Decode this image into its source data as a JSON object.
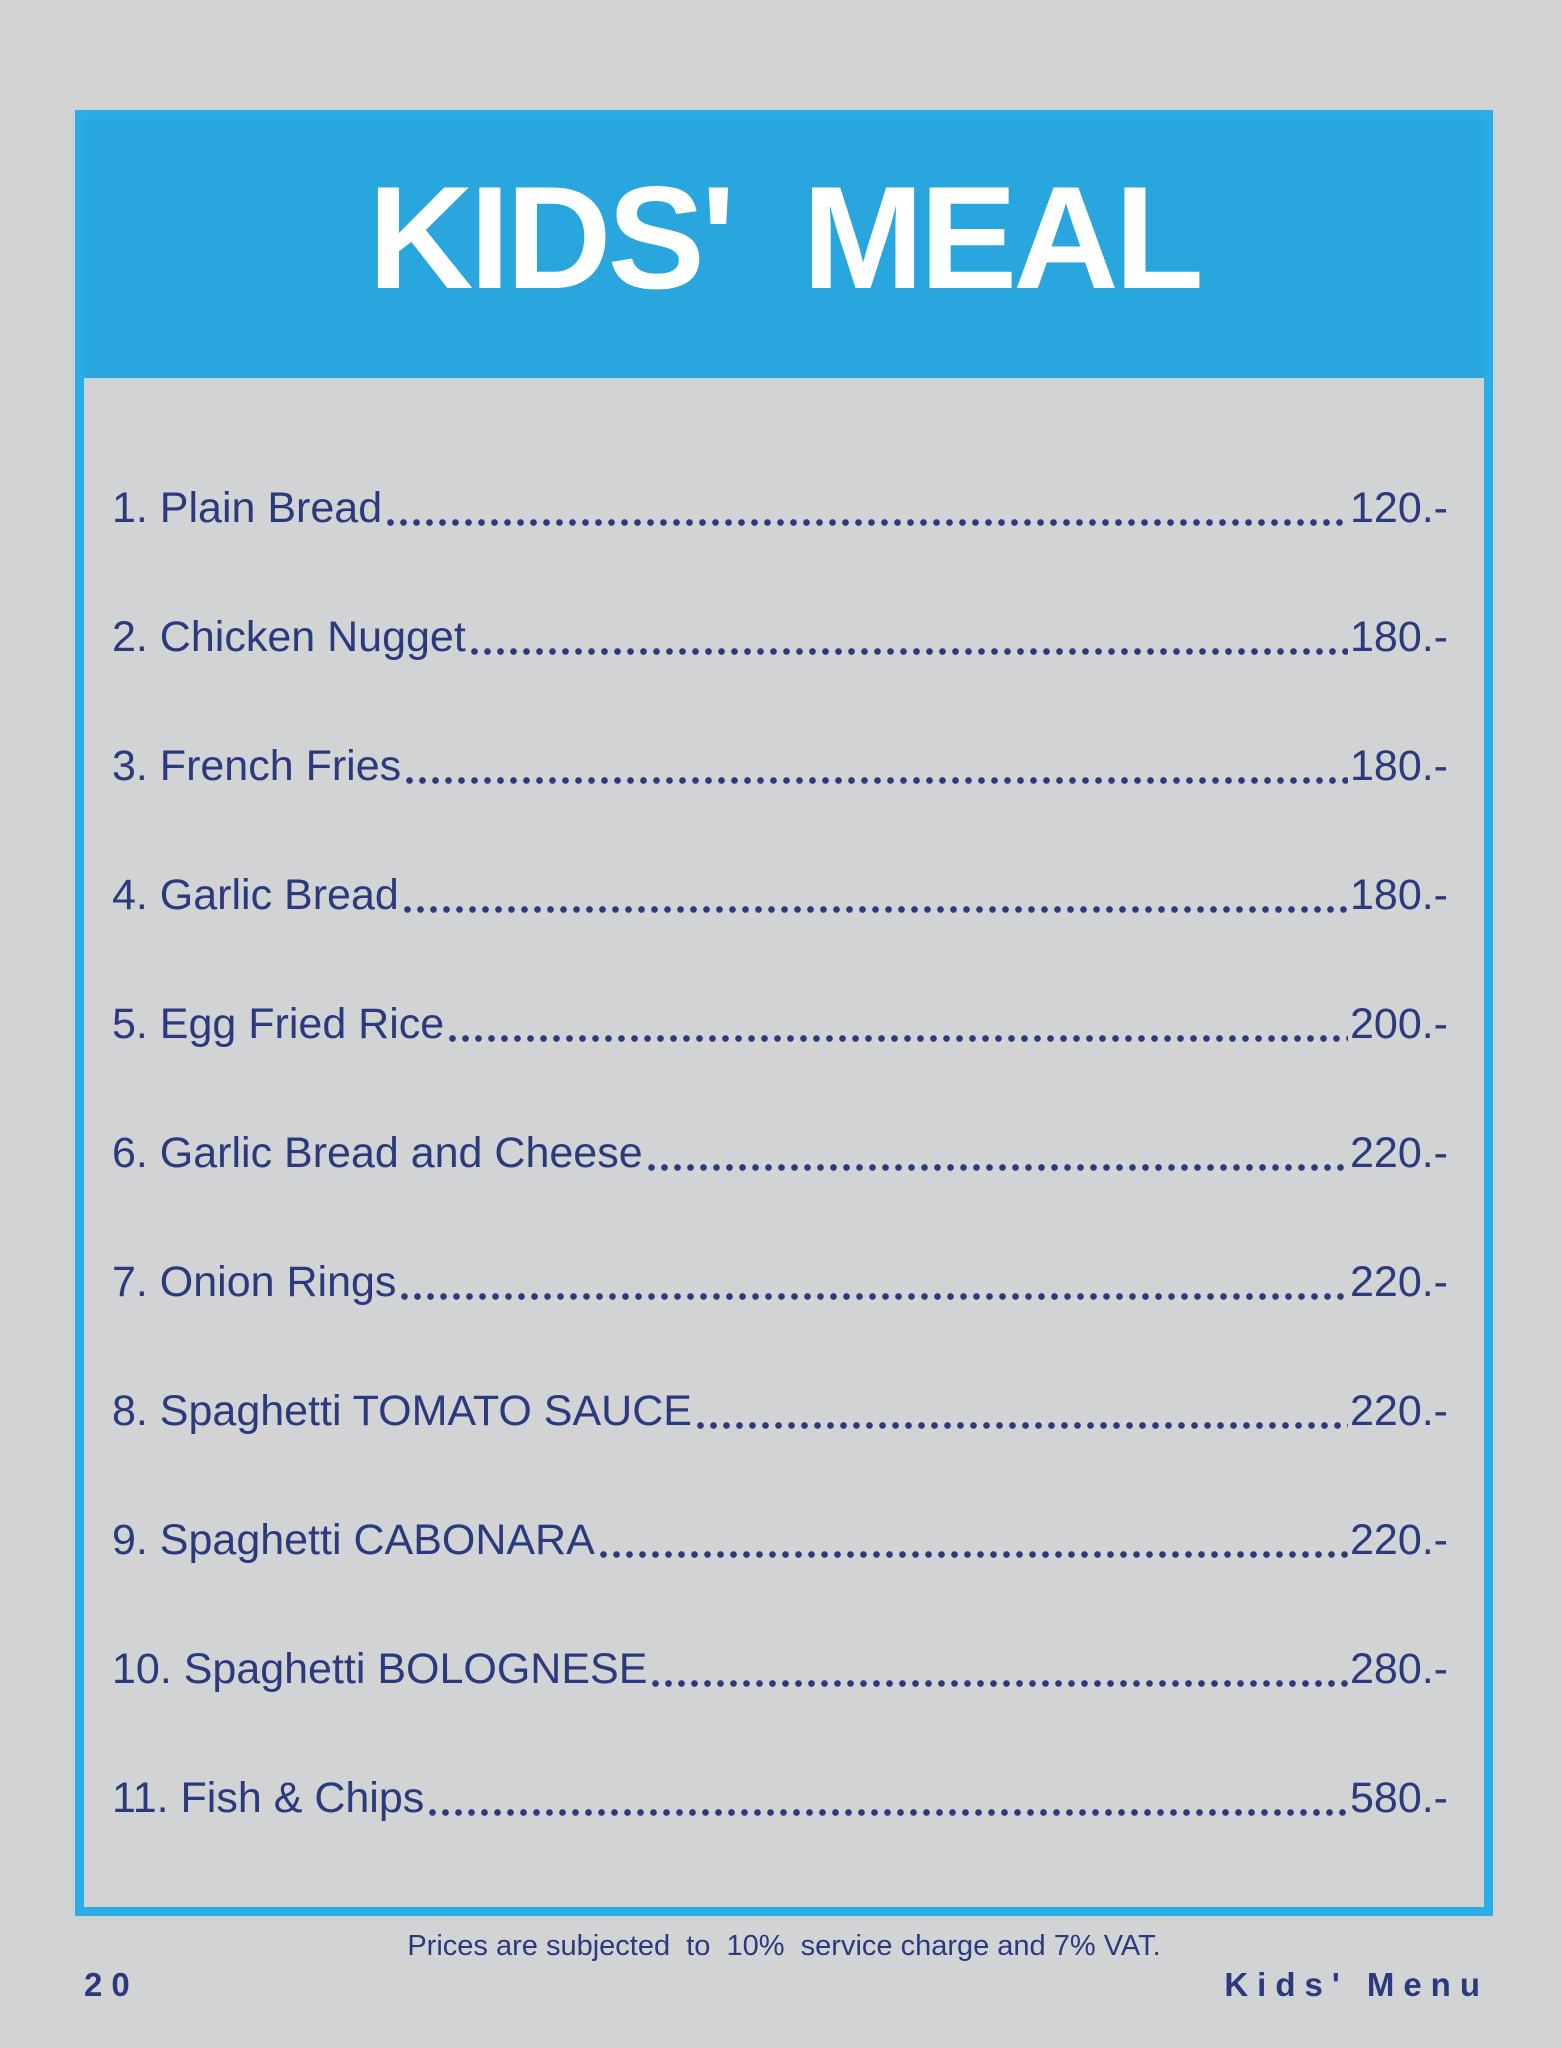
{
  "header": {
    "title": "KIDS' MEAL"
  },
  "menu": {
    "items": [
      {
        "name": "1. Plain Bread",
        "price": "120.-"
      },
      {
        "name": "2. Chicken Nugget",
        "price": "180.-"
      },
      {
        "name": "3. French Fries",
        "price": "180.-"
      },
      {
        "name": "4. Garlic Bread",
        "price": "180.-"
      },
      {
        "name": "5. Egg Fried Rice",
        "price": "200.-"
      },
      {
        "name": "6. Garlic Bread and Cheese",
        "price": "220.-"
      },
      {
        "name": "7. Onion Rings",
        "price": "220.-"
      },
      {
        "name": "8. Spaghetti TOMATO SAUCE",
        "price": "220.-"
      },
      {
        "name": "9. Spaghetti CABONARA",
        "price": "220.-"
      },
      {
        "name": "10. Spaghetti BOLOGNESE",
        "price": "280.-"
      },
      {
        "name": "11. Fish & Chips",
        "price": "580.-"
      }
    ]
  },
  "footer": {
    "note": "Prices are subjected  to  10%  service charge and 7% VAT.",
    "page_number": "20",
    "menu_label": "Kids' Menu"
  },
  "colors": {
    "accent_blue": "#29ABE2",
    "navy_text": "#2B3A7D",
    "page_gray": "#D2D3D5",
    "title_white": "#FFFFFF"
  }
}
